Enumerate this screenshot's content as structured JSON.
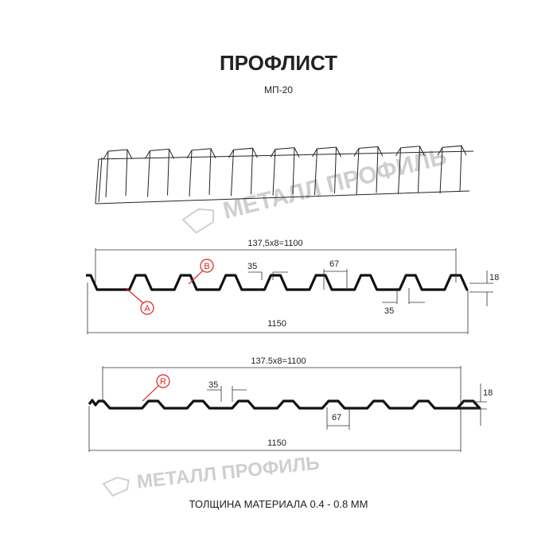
{
  "title": "ПРОФЛИСТ",
  "subtitle": "МП-20",
  "watermark": "МЕТАЛЛ ПРОФИЛЬ",
  "footer": "ТОЛЩИНА МАТЕРИАЛА 0.4 - 0.8 ММ",
  "profile_a": {
    "top_dim": "137,5x8=1100",
    "rib_top": "35",
    "rib_bottom": "35",
    "flat": "67",
    "height": "18",
    "total": "1150",
    "label_a": "A",
    "label_b": "B"
  },
  "profile_b": {
    "top_dim": "137.5x8=1100",
    "rib_top": "35",
    "flat": "67",
    "height": "18",
    "total": "1150",
    "label_r": "R"
  },
  "colors": {
    "accent": "#e02020",
    "line": "#111111",
    "watermark": "#cfcfcf"
  }
}
